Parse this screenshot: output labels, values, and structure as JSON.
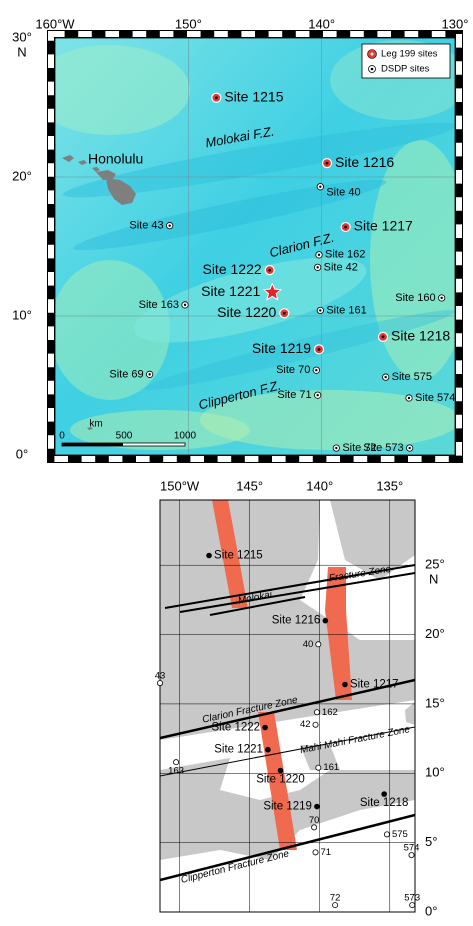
{
  "top_map": {
    "lon_lim": [
      160,
      130
    ],
    "lat_lim": [
      0,
      30
    ],
    "lon_ticks": [
      {
        "value": 160,
        "label": "160°W"
      },
      {
        "value": 150,
        "label": "150°"
      },
      {
        "value": 140,
        "label": "140°"
      },
      {
        "value": 130,
        "label": "130°"
      }
    ],
    "lat_ticks": [
      {
        "value": 30,
        "label": "30°"
      },
      {
        "value": 20,
        "label": "20°"
      },
      {
        "value": 10,
        "label": "10°"
      },
      {
        "value": 0,
        "label": "0°"
      }
    ],
    "lat_hemisphere": "N",
    "legend": [
      "Leg 199 sites",
      "DSDP sites"
    ],
    "labels": {
      "city": "Honolulu",
      "molokai": "Molokai F.Z.",
      "clarion": "Clarion F.Z.",
      "clipperton": "Clipperton F.Z."
    },
    "scale_bar": {
      "unit": "km",
      "ticks": [
        0,
        500,
        1000
      ]
    }
  },
  "bottom_map": {
    "lon_lim": [
      151.4,
      133.2
    ],
    "lat_lim": [
      0,
      29.7
    ],
    "lon_ticks": [
      {
        "value": 150,
        "label": "150°W"
      },
      {
        "value": 145,
        "label": "145°"
      },
      {
        "value": 140,
        "label": "140°"
      },
      {
        "value": 135,
        "label": "135°"
      }
    ],
    "lat_ticks": [
      {
        "value": 25,
        "label": "25°"
      },
      {
        "value": 20,
        "label": "20°"
      },
      {
        "value": 15,
        "label": "15°"
      },
      {
        "value": 10,
        "label": "10°"
      },
      {
        "value": 5,
        "label": "5°"
      },
      {
        "value": 0,
        "label": "0°"
      }
    ],
    "lat_hemisphere": "N",
    "labels": {
      "molokai": "Molokai",
      "molokai_zone": "Fracture Zone",
      "clarion": "Clarion Fracture Zone",
      "mahi_mahi": "Mahi Mahi Fracture Zone",
      "clipperton": "Clipperton Fracture Zone"
    }
  },
  "leg199_sites": [
    {
      "label": "Site 1215",
      "lon": 147.9,
      "lat": 25.7
    },
    {
      "label": "Site 1216",
      "lon": 139.6,
      "lat": 21.0
    },
    {
      "label": "Site 1217",
      "lon": 138.2,
      "lat": 16.4
    },
    {
      "label": "Site 1218",
      "lon": 135.4,
      "lat": 8.5
    },
    {
      "label": "Site 1219",
      "lon": 140.2,
      "lat": 7.6
    },
    {
      "label": "Site 1220",
      "lon": 142.8,
      "lat": 10.2
    },
    {
      "label": "Site 1221",
      "lon": 143.7,
      "lat": 11.7,
      "marker": "star"
    },
    {
      "label": "Site 1222",
      "lon": 143.9,
      "lat": 13.3
    }
  ],
  "dsdp_sites": [
    {
      "label": "Site 40",
      "short_label": "40",
      "lon": 140.1,
      "lat": 19.3
    },
    {
      "label": "Site 43",
      "short_label": "43",
      "lon": 151.4,
      "lat": 16.5
    },
    {
      "label": "Site 162",
      "short_label": "162",
      "lon": 140.2,
      "lat": 14.4
    },
    {
      "label": "Site 42",
      "short_label": "42",
      "lon": 140.3,
      "lat": 13.5
    },
    {
      "label": "Site 163",
      "short_label": "163",
      "lon": 150.25,
      "lat": 10.8
    },
    {
      "label": "Site 161",
      "short_label": "161",
      "lon": 140.1,
      "lat": 10.4
    },
    {
      "label": "Site 160",
      "lon": 131.0,
      "lat": 11.3
    },
    {
      "label": "Site 69",
      "lon": 152.9,
      "lat": 5.8
    },
    {
      "label": "Site 70",
      "short_label": "70",
      "lon": 140.4,
      "lat": 6.1
    },
    {
      "label": "Site 71",
      "short_label": "71",
      "lon": 140.3,
      "lat": 4.3
    },
    {
      "label": "Site 575",
      "short_label": "575",
      "lon": 135.2,
      "lat": 5.6
    },
    {
      "label": "Site 574",
      "short_label": "574",
      "lon": 133.45,
      "lat": 4.1
    },
    {
      "label": "Site 72",
      "short_label": "72",
      "lon": 138.9,
      "lat": 0.5
    },
    {
      "label": "Site 573",
      "short_label": "573",
      "lon": 133.4,
      "lat": 0.5
    }
  ]
}
